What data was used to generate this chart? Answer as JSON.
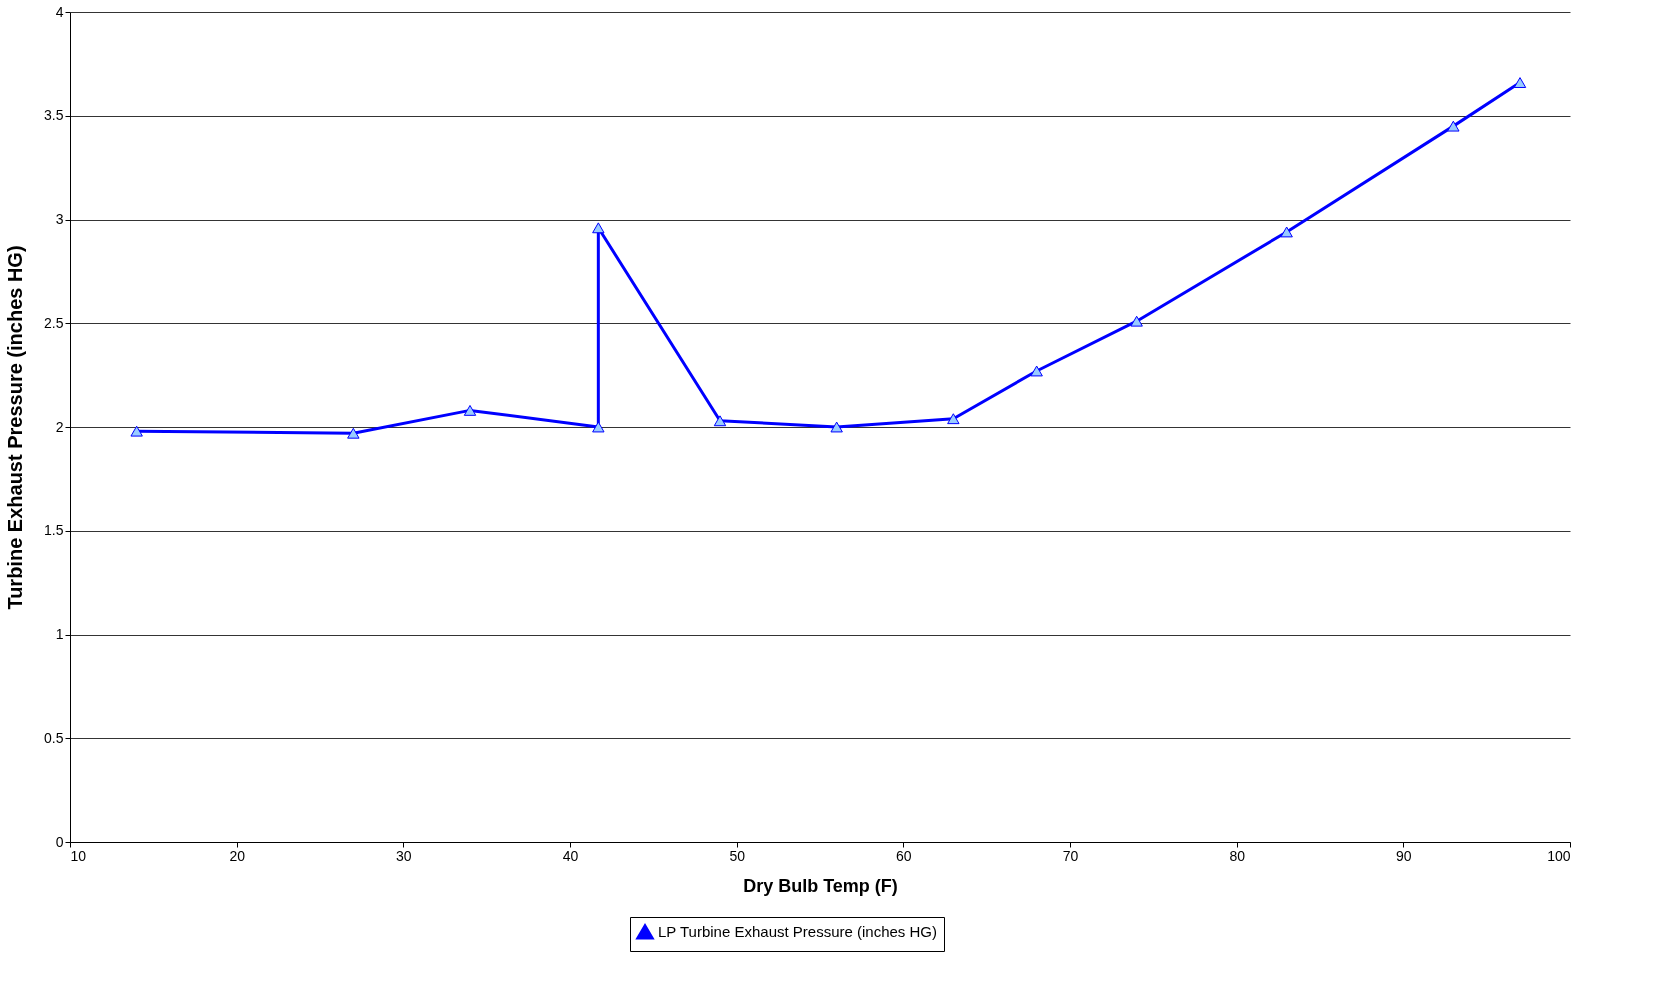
{
  "chart_data": {
    "type": "line",
    "xlabel": "Dry Bulb Temp (F)",
    "ylabel": "Turbine Exhaust Pressure (inches HG)",
    "x": [
      14,
      27,
      34,
      41.7,
      41.7,
      49,
      56,
      63,
      68,
      74,
      83,
      93,
      97
    ],
    "series": [
      {
        "name": "LP Turbine Exhaust Pressure (inches HG)",
        "color": "#0000ff",
        "values": [
          1.98,
          1.97,
          2.08,
          2.0,
          2.96,
          2.03,
          2.0,
          2.04,
          2.27,
          2.51,
          2.94,
          3.45,
          3.66
        ]
      }
    ],
    "xlim": [
      10,
      100
    ],
    "xticks": [
      10,
      20,
      30,
      40,
      50,
      60,
      70,
      80,
      90,
      100
    ],
    "ylim": [
      0,
      4
    ],
    "yticks": [
      0,
      0.5,
      1,
      1.5,
      2,
      2.5,
      3,
      3.5,
      4
    ],
    "grid": "y",
    "legend": "bottom",
    "marker": "triangle",
    "line_style": "solid"
  }
}
